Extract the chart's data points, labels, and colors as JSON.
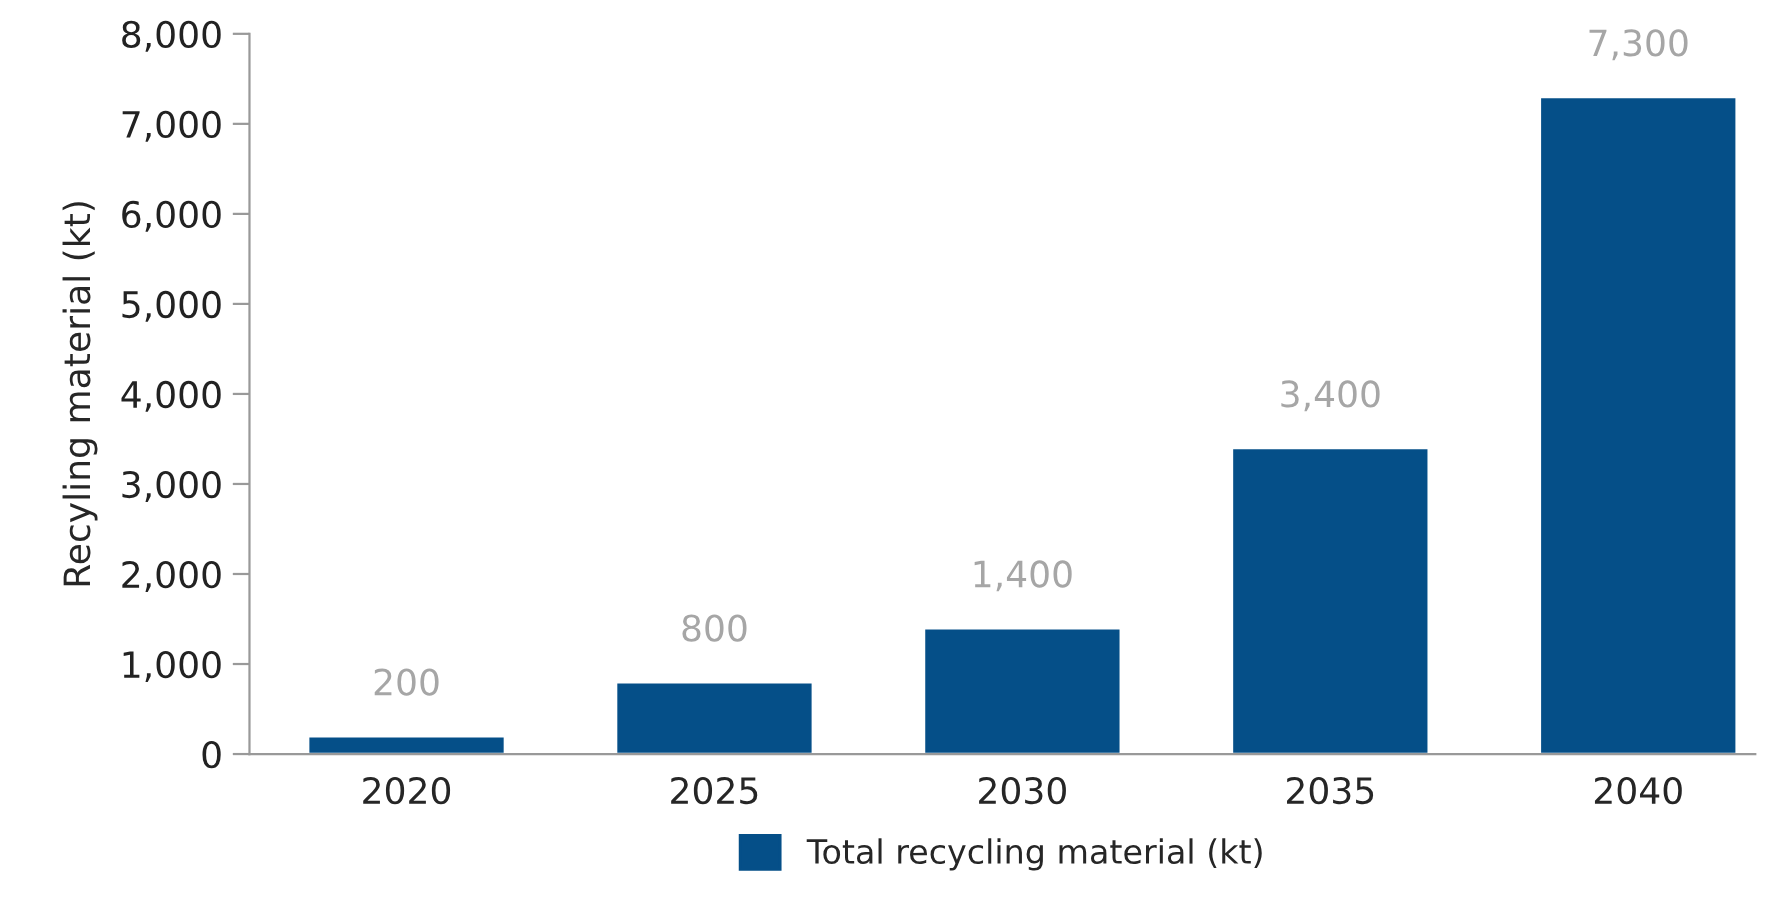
{
  "chart_data": {
    "type": "bar",
    "categories": [
      "2020",
      "2025",
      "2030",
      "2035",
      "2040"
    ],
    "series": [
      {
        "name": "Total recycling material (kt)",
        "color": "#054f88",
        "values": [
          200,
          800,
          1400,
          3400,
          7300
        ],
        "value_labels": [
          "200",
          "800",
          "1,400",
          "3,400",
          "7,300"
        ]
      }
    ],
    "ylabel": "Recyling material (kt)",
    "ylim": [
      0,
      8000
    ],
    "yticks": [
      0,
      {
        "value": 1000,
        "label": "1,000"
      },
      {
        "value": 2000,
        "label": "2,000"
      },
      {
        "value": 3000,
        "label": "3,000"
      },
      {
        "value": 4000,
        "label": "4,000"
      },
      {
        "value": 5000,
        "label": "5,000"
      },
      {
        "value": 6000,
        "label": "6,000"
      },
      {
        "value": 7000,
        "label": "7,000"
      },
      {
        "value": 8000,
        "label": "8,000"
      }
    ],
    "grid": false,
    "legend": "bottom"
  }
}
